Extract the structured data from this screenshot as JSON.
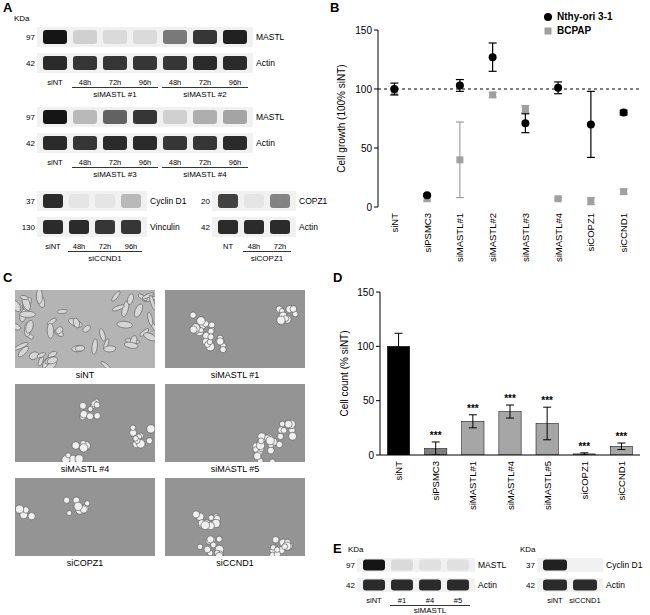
{
  "panels": [
    {
      "label": "A",
      "blots": [
        {
          "kda_label": "KDa",
          "lanes": [
            "siNT",
            "48h",
            "72h",
            "96h",
            "48h",
            "72h",
            "96h"
          ],
          "groups": [
            {
              "label": "siMASTL #1",
              "lanes": [
                1,
                2,
                3
              ]
            },
            {
              "label": "siMASTL #2",
              "lanes": [
                4,
                5,
                6
              ]
            }
          ],
          "rows": [
            {
              "label": "MASTL",
              "kda": 97,
              "intensity": [
                1,
                0.15,
                0.1,
                0.1,
                0.55,
                0.85,
                0.95
              ]
            },
            {
              "label": "Actin",
              "kda": 42,
              "intensity": [
                0.9,
                0.85,
                0.85,
                0.85,
                0.85,
                0.9,
                0.9
              ]
            }
          ]
        },
        {
          "lanes": [
            "siNT",
            "48h",
            "72h",
            "96h",
            "48h",
            "72h",
            "96h"
          ],
          "groups": [
            {
              "label": "siMASTL #3",
              "lanes": [
                1,
                2,
                3
              ]
            },
            {
              "label": "siMASTL #4",
              "lanes": [
                4,
                5,
                6
              ]
            }
          ],
          "rows": [
            {
              "label": "MASTL",
              "kda": 97,
              "intensity": [
                1,
                0.25,
                0.65,
                0.85,
                0.15,
                0.3,
                0.35
              ]
            },
            {
              "label": "Actin",
              "kda": 42,
              "intensity": [
                0.9,
                0.85,
                0.9,
                0.9,
                0.85,
                0.85,
                0.9
              ]
            }
          ]
        },
        {
          "lanes": [
            "siNT",
            "48h",
            "72h",
            "96h"
          ],
          "groups": [
            {
              "label": "siCCND1",
              "lanes": [
                1,
                2,
                3
              ]
            }
          ],
          "rows": [
            {
              "label": "Cyclin D1",
              "kda": 37,
              "intensity": [
                0.9,
                0.05,
                0.05,
                0.25
              ]
            },
            {
              "label": "Vinculin",
              "kda": 130,
              "intensity": [
                0.9,
                0.9,
                0.85,
                0.85
              ]
            }
          ]
        },
        {
          "lanes": [
            "NT",
            "48h",
            "72h"
          ],
          "groups": [
            {
              "label": "siCOPZ1",
              "lanes": [
                1,
                2
              ]
            }
          ],
          "rows": [
            {
              "label": "COPZ1",
              "kda": 20,
              "intensity": [
                0.8,
                0.05,
                0.5
              ]
            },
            {
              "label": "Actin",
              "kda": 42,
              "intensity": [
                0.9,
                0.9,
                0.9
              ]
            }
          ]
        }
      ]
    },
    {
      "label": "C",
      "images": [
        "siNT",
        "siMASTL #1",
        "siMASTL #4",
        "siMASTL #5",
        "siCOPZ1",
        "siCCND1"
      ]
    },
    {
      "label": "E",
      "blots": [
        {
          "kda_label": "KDa",
          "lanes": [
            "siNT",
            "#1",
            "#4",
            "#5"
          ],
          "groups": [
            {
              "label": "siMASTL",
              "lanes": [
                1,
                2,
                3
              ]
            }
          ],
          "rows": [
            {
              "label": "MASTL",
              "kda": 97,
              "intensity": [
                1,
                0.1,
                0.08,
                0.08
              ]
            },
            {
              "label": "Actin",
              "kda": 42,
              "intensity": [
                0.9,
                0.9,
                0.9,
                0.9
              ]
            }
          ]
        },
        {
          "kda_label": "KDa",
          "lanes": [
            "siNT",
            "siCCND1"
          ],
          "rows": [
            {
              "label": "Cyclin D1",
              "kda": 37,
              "intensity": [
                0.95,
                0
              ]
            },
            {
              "label": "Actin",
              "kda": 42,
              "intensity": [
                0.9,
                0.9
              ]
            }
          ]
        }
      ]
    }
  ],
  "chart_data": [
    {
      "panel": "B",
      "type": "scatter",
      "categories": [
        "siNT",
        "siPSMC3",
        "siMASTL#1",
        "siMASTL#2",
        "siMASTL#3",
        "siMASTL#4",
        "siCOPZ1",
        "siCCND1"
      ],
      "ylabel": "Cell growth (100% siNT)",
      "ylim": [
        0,
        150
      ],
      "yticks": [
        0,
        50,
        100,
        150
      ],
      "reference_line": 100,
      "legend": "upper-right",
      "series": [
        {
          "name": "Nthy-ori 3-1",
          "color": "#000000",
          "marker": "circle",
          "values": [
            100,
            10,
            103,
            127,
            71,
            101,
            70,
            80
          ],
          "errors": [
            5,
            1,
            5,
            12,
            8,
            5,
            28,
            2
          ]
        },
        {
          "name": "BCPAP",
          "color": "#a0a0a0",
          "marker": "square",
          "values": [
            98,
            7,
            40,
            95,
            83,
            7,
            5,
            13
          ],
          "errors": [
            3,
            2,
            32,
            2,
            3,
            1,
            3,
            2
          ]
        }
      ]
    },
    {
      "panel": "D",
      "type": "bar",
      "categories": [
        "siNT",
        "siPSMC3",
        "siMASTL#1",
        "siMASTL#4",
        "siMASTL#5",
        "siCOPZ1",
        "siCCND1"
      ],
      "ylabel": "Cell count (% siNT)",
      "ylim": [
        0,
        150
      ],
      "yticks": [
        0,
        50,
        100,
        150
      ],
      "values": [
        100,
        6,
        31,
        40,
        29,
        1,
        8
      ],
      "errors": [
        12,
        6,
        6,
        6,
        15,
        1,
        3
      ],
      "colors": [
        "#000000",
        "#7f7f7f",
        "#a6a6a6",
        "#a6a6a6",
        "#a6a6a6",
        "#a6a6a6",
        "#a6a6a6"
      ],
      "significance": [
        null,
        "***",
        "***",
        "***",
        "***",
        "***",
        "***"
      ]
    }
  ]
}
